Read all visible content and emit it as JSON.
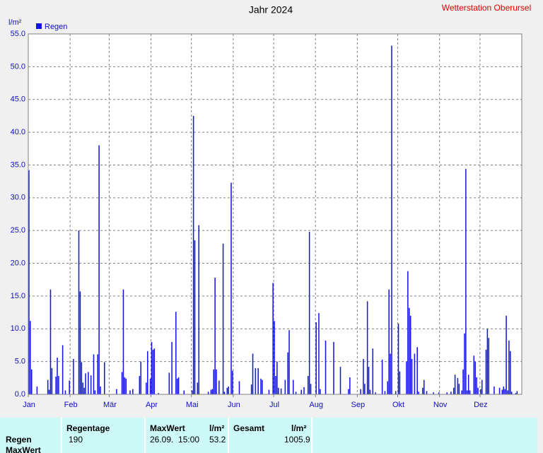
{
  "chart_data": {
    "type": "bar",
    "title": "Jahr 2024",
    "subtitle": "Wetterstation Oberursel",
    "y_label": "l/m²",
    "xlim": [
      0,
      366
    ],
    "ylim": [
      0,
      55
    ],
    "grid": true,
    "xticks": [
      {
        "value": 0,
        "label": "Jan"
      },
      {
        "value": 31,
        "label": "Feb"
      },
      {
        "value": 60,
        "label": "Mär"
      },
      {
        "value": 91,
        "label": "Apr"
      },
      {
        "value": 121,
        "label": "Mai"
      },
      {
        "value": 152,
        "label": "Jun"
      },
      {
        "value": 182,
        "label": "Jul"
      },
      {
        "value": 213,
        "label": "Aug"
      },
      {
        "value": 244,
        "label": "Sep"
      },
      {
        "value": 274,
        "label": "Okt"
      },
      {
        "value": 305,
        "label": "Nov"
      },
      {
        "value": 335,
        "label": "Dez"
      }
    ],
    "yticks": [
      {
        "value": 0,
        "label": "0.0"
      },
      {
        "value": 5,
        "label": "5.0"
      },
      {
        "value": 10,
        "label": "10.0"
      },
      {
        "value": 15,
        "label": "15.0"
      },
      {
        "value": 20,
        "label": "20.0"
      },
      {
        "value": 25,
        "label": "25.0"
      },
      {
        "value": 30,
        "label": "30.0"
      },
      {
        "value": 35,
        "label": "35.0"
      },
      {
        "value": 40,
        "label": "40.0"
      },
      {
        "value": 45,
        "label": "45.0"
      },
      {
        "value": 50,
        "label": "50.0"
      },
      {
        "value": 55,
        "label": "55.0"
      }
    ],
    "x": [
      1,
      2,
      3,
      7,
      15,
      16,
      17,
      18,
      21,
      22,
      23,
      26,
      28,
      31,
      34,
      38,
      39,
      40,
      41,
      42,
      43,
      45,
      47,
      49,
      50,
      52,
      53,
      54,
      57,
      66,
      70,
      71,
      72,
      73,
      76,
      78,
      83,
      84,
      88,
      89,
      91,
      92,
      93,
      94,
      97,
      105,
      107,
      110,
      111,
      112,
      116,
      122,
      123,
      124,
      126,
      127,
      134,
      136,
      137,
      138,
      139,
      140,
      142,
      145,
      146,
      148,
      149,
      151,
      152,
      157,
      166,
      167,
      169,
      171,
      173,
      174,
      179,
      182,
      183,
      184,
      185,
      186,
      188,
      191,
      193,
      194,
      197,
      199,
      203,
      205,
      208,
      209,
      210,
      214,
      216,
      217,
      221,
      227,
      232,
      238,
      239,
      247,
      249,
      250,
      252,
      253,
      254,
      256,
      258,
      263,
      265,
      267,
      268,
      269,
      270,
      273,
      275,
      276,
      281,
      282,
      283,
      284,
      285,
      287,
      289,
      290,
      293,
      294,
      296,
      301,
      305,
      311,
      314,
      316,
      317,
      319,
      320,
      322,
      323,
      324,
      325,
      326,
      327,
      328,
      331,
      332,
      333,
      334,
      336,
      337,
      340,
      341,
      342,
      346,
      350,
      352,
      353,
      354,
      355,
      356,
      357,
      358,
      359,
      362,
      363
    ],
    "series": [
      {
        "name": "Regen",
        "color": "#1414e6",
        "values": [
          34.2,
          11.2,
          3.8,
          1.2,
          2.2,
          0.7,
          16.0,
          4.0,
          2.7,
          5.6,
          2.8,
          7.5,
          0.6,
          2.1,
          5.4,
          25.0,
          15.7,
          4.9,
          1.8,
          1.0,
          3.2,
          3.4,
          2.9,
          6.1,
          0.6,
          6.1,
          38.0,
          1.2,
          4.9,
          0.8,
          3.4,
          16.0,
          2.6,
          2.4,
          0.6,
          0.8,
          2.8,
          5.0,
          1.8,
          6.6,
          2.4,
          8.0,
          6.8,
          7.0,
          0.2,
          3.3,
          8.0,
          12.6,
          2.4,
          2.6,
          0.6,
          0.6,
          42.5,
          23.5,
          1.8,
          25.8,
          0.4,
          0.7,
          0.8,
          3.8,
          17.8,
          3.8,
          2.1,
          23.0,
          0.4,
          1.0,
          1.2,
          32.3,
          3.6,
          2.0,
          1.5,
          6.2,
          4.0,
          4.0,
          2.4,
          2.2,
          0.7,
          17.0,
          11.2,
          2.8,
          5.0,
          1.0,
          0.9,
          2.2,
          6.4,
          9.8,
          2.2,
          0.4,
          0.7,
          1.1,
          2.8,
          24.8,
          1.6,
          11.0,
          12.4,
          0.8,
          8.2,
          8.0,
          4.2,
          0.8,
          2.6,
          0.8,
          5.4,
          1.6,
          14.2,
          4.2,
          0.7,
          7.0,
          0.3,
          5.3,
          0.5,
          2.0,
          16.0,
          6.2,
          53.2,
          0.5,
          10.8,
          3.5,
          5.0,
          18.8,
          13.2,
          12.0,
          5.4,
          6.2,
          7.2,
          0.4,
          1.0,
          2.2,
          0.5,
          0.3,
          0.3,
          0.3,
          0.4,
          1.0,
          3.0,
          2.5,
          1.6,
          0.6,
          3.8,
          9.3,
          34.4,
          0.6,
          3.0,
          0.6,
          5.9,
          5.0,
          2.6,
          1.0,
          0.8,
          2.2,
          6.8,
          10.0,
          8.6,
          1.2,
          1.0,
          0.7,
          1.2,
          0.8,
          12.0,
          0.6,
          8.2,
          6.6,
          0.4,
          0.2,
          0.5
        ]
      }
    ]
  },
  "stats_table": {
    "headers": [
      "Regentage",
      "MaxWert",
      "l/m²",
      "Gesamt",
      "l/m²"
    ],
    "row_labels": [
      "Regen",
      "MaxWert"
    ],
    "regen": {
      "regentage": 190,
      "maxwert_zeit": "26.09.  15:00",
      "maxwert": 53.2,
      "gesamt": 1005.9
    }
  }
}
